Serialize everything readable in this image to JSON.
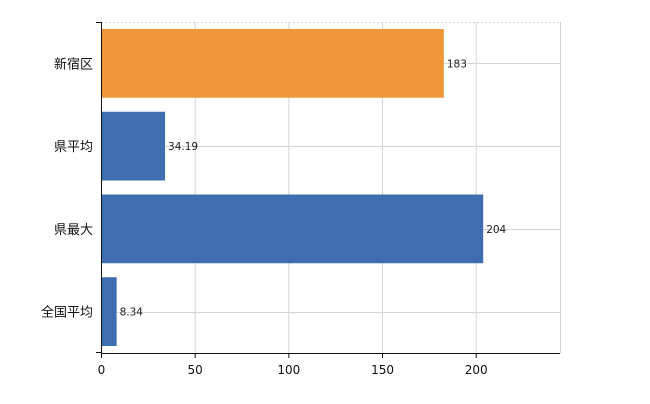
{
  "chart_data": {
    "type": "bar",
    "orientation": "horizontal",
    "categories": [
      "新宿区",
      "県平均",
      "県最大",
      "全国平均"
    ],
    "values": [
      183,
      34.19,
      204,
      8.34
    ],
    "value_labels": [
      "183",
      "34.19",
      "204",
      "8.34"
    ],
    "bar_colors": [
      "#F0963A",
      "#3E6DB0",
      "#3E6DB0",
      "#3E6DB0"
    ],
    "xlim": [
      0,
      245
    ],
    "x_ticks": [
      0,
      50,
      100,
      150,
      200
    ],
    "grid": true,
    "legend": "none",
    "title": "",
    "xlabel": "",
    "ylabel": ""
  }
}
